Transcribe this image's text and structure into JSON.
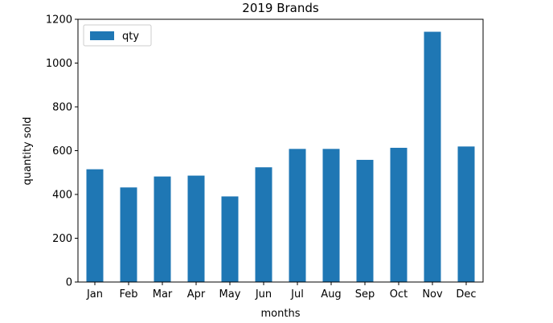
{
  "chart_data": {
    "type": "bar",
    "title": "2019 Brands",
    "xlabel": "months",
    "ylabel": "quantity sold",
    "categories": [
      "Jan",
      "Feb",
      "Mar",
      "Apr",
      "May",
      "Jun",
      "Jul",
      "Aug",
      "Sep",
      "Oct",
      "Nov",
      "Dec"
    ],
    "series": [
      {
        "name": "qty",
        "values": [
          515,
          432,
          482,
          486,
          391,
          524,
          608,
          608,
          558,
          613,
          1143,
          619
        ]
      }
    ],
    "ylim": [
      0,
      1200
    ],
    "yticks": [
      0,
      200,
      400,
      600,
      800,
      1000,
      1200
    ],
    "grid": false,
    "legend_position": "top-left",
    "bar_color": "#1f77b4"
  }
}
